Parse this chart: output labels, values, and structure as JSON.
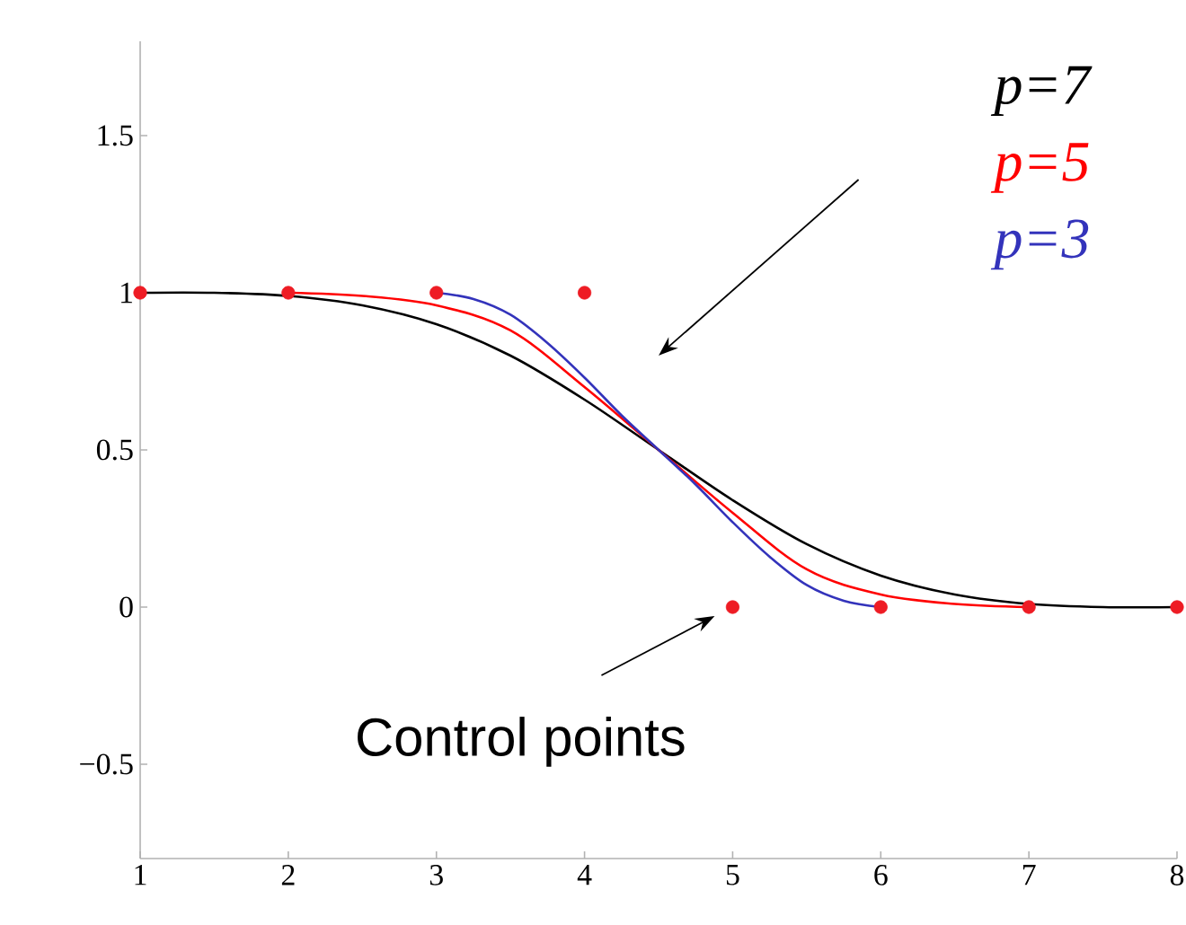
{
  "chart_data": {
    "type": "line",
    "xlim": [
      1,
      8
    ],
    "ylim": [
      -0.8,
      1.8
    ],
    "xticks": [
      1,
      2,
      3,
      4,
      5,
      6,
      7,
      8
    ],
    "yticks": [
      {
        "value": -0.5,
        "label": "−0.5"
      },
      0,
      0.5,
      1,
      1.5
    ],
    "grid": false,
    "legend": "top right",
    "marker": "none",
    "line_style": "solid",
    "series": [
      {
        "name": "p=7",
        "color": "#000000",
        "x": [
          1,
          1.5,
          2,
          2.5,
          3,
          3.5,
          4,
          4.5,
          5,
          5.5,
          6,
          6.5,
          7,
          7.5,
          8
        ],
        "values": [
          1,
          1,
          0.99,
          0.96,
          0.9,
          0.8,
          0.66,
          0.5,
          0.34,
          0.2,
          0.1,
          0.04,
          0.01,
          0,
          0
        ]
      },
      {
        "name": "p=5",
        "color": "#ff0000",
        "x": [
          2,
          2.5,
          3,
          3.5,
          4,
          4.5,
          5,
          5.5,
          6,
          6.5,
          7
        ],
        "values": [
          1,
          0.99,
          0.96,
          0.88,
          0.7,
          0.5,
          0.3,
          0.12,
          0.04,
          0.01,
          0
        ]
      },
      {
        "name": "p=3",
        "color": "#3333bb",
        "x": [
          3,
          3.25,
          3.5,
          3.75,
          4,
          4.25,
          4.5,
          4.75,
          5,
          5.25,
          5.5,
          5.75,
          6
        ],
        "values": [
          1,
          0.98,
          0.93,
          0.84,
          0.73,
          0.61,
          0.5,
          0.39,
          0.27,
          0.16,
          0.07,
          0.02,
          0
        ]
      },
      {
        "type": "scatter",
        "marker": "circle",
        "color": "#ee1c24",
        "x": [
          1,
          2,
          3,
          4,
          5,
          6,
          7,
          8
        ],
        "values": [
          1,
          1,
          1,
          1,
          0,
          0,
          0,
          0
        ]
      }
    ],
    "annotations": [
      {
        "text": "Control points",
        "x": 5,
        "y": 0
      }
    ]
  }
}
